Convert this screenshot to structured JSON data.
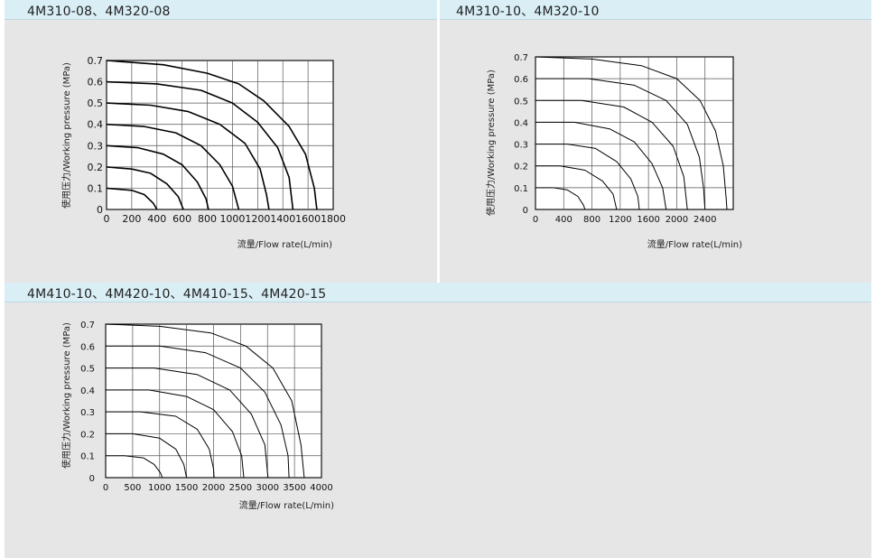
{
  "panels": [
    {
      "title": "4M310-08、4M320-08"
    },
    {
      "title": "4M310-10、4M320-10"
    },
    {
      "title": "4M410-10、4M420-10、4M410-15、4M420-15"
    }
  ],
  "chart_data": [
    {
      "type": "line",
      "title": "4M310-08、4M320-08",
      "xlabel": "流量/Flow rate(L/min)",
      "ylabel": "使用压力/Working pressure (MPa)",
      "xlim": [
        0,
        1800
      ],
      "ylim": [
        0,
        0.7
      ],
      "x_ticks": [
        "0",
        "200",
        "400",
        "600",
        "800",
        "1000",
        "1200",
        "1400",
        "1600",
        "1800"
      ],
      "y_ticks": [
        "0",
        "0.1",
        "0.2",
        "0.3",
        "0.4",
        "0.5",
        "0.6",
        "0.7"
      ],
      "grid": true,
      "series": [
        {
          "values": [
            [
              0,
              0.1
            ],
            [
              200,
              0.09
            ],
            [
              300,
              0.07
            ],
            [
              370,
              0.03
            ],
            [
              400,
              0
            ]
          ]
        },
        {
          "values": [
            [
              0,
              0.2
            ],
            [
              200,
              0.19
            ],
            [
              350,
              0.17
            ],
            [
              480,
              0.12
            ],
            [
              570,
              0.06
            ],
            [
              610,
              0
            ]
          ]
        },
        {
          "values": [
            [
              0,
              0.3
            ],
            [
              250,
              0.29
            ],
            [
              450,
              0.26
            ],
            [
              600,
              0.21
            ],
            [
              720,
              0.13
            ],
            [
              790,
              0.05
            ],
            [
              810,
              0
            ]
          ]
        },
        {
          "values": [
            [
              0,
              0.4
            ],
            [
              300,
              0.39
            ],
            [
              550,
              0.36
            ],
            [
              750,
              0.3
            ],
            [
              900,
              0.21
            ],
            [
              1000,
              0.11
            ],
            [
              1050,
              0
            ]
          ]
        },
        {
          "values": [
            [
              0,
              0.5
            ],
            [
              350,
              0.49
            ],
            [
              650,
              0.46
            ],
            [
              900,
              0.4
            ],
            [
              1100,
              0.31
            ],
            [
              1220,
              0.19
            ],
            [
              1270,
              0.07
            ],
            [
              1290,
              0
            ]
          ]
        },
        {
          "values": [
            [
              0,
              0.6
            ],
            [
              400,
              0.59
            ],
            [
              750,
              0.56
            ],
            [
              1000,
              0.5
            ],
            [
              1200,
              0.41
            ],
            [
              1360,
              0.29
            ],
            [
              1450,
              0.15
            ],
            [
              1480,
              0
            ]
          ]
        },
        {
          "values": [
            [
              0,
              0.7
            ],
            [
              450,
              0.68
            ],
            [
              800,
              0.64
            ],
            [
              1050,
              0.59
            ],
            [
              1250,
              0.51
            ],
            [
              1450,
              0.39
            ],
            [
              1580,
              0.26
            ],
            [
              1650,
              0.1
            ],
            [
              1670,
              0
            ]
          ]
        }
      ]
    },
    {
      "type": "line",
      "title": "4M310-10、4M320-10",
      "xlabel": "流量/Flow rate(L/min)",
      "ylabel": "使用压力/Working pressure (MPa)",
      "xlim": [
        0,
        2800
      ],
      "ylim": [
        0,
        0.7
      ],
      "x_ticks": [
        "0",
        "400",
        "800",
        "1200",
        "1600",
        "2000",
        "2400"
      ],
      "y_ticks": [
        "0",
        "0.1",
        "0.2",
        "0.3",
        "0.4",
        "0.5",
        "0.6",
        "0.7"
      ],
      "grid": true,
      "series": [
        {
          "values": [
            [
              0,
              0.1
            ],
            [
              250,
              0.1
            ],
            [
              450,
              0.09
            ],
            [
              600,
              0.06
            ],
            [
              680,
              0.02
            ],
            [
              700,
              0
            ]
          ]
        },
        {
          "values": [
            [
              0,
              0.2
            ],
            [
              350,
              0.2
            ],
            [
              700,
              0.18
            ],
            [
              950,
              0.13
            ],
            [
              1100,
              0.07
            ],
            [
              1150,
              0
            ]
          ]
        },
        {
          "values": [
            [
              0,
              0.3
            ],
            [
              450,
              0.3
            ],
            [
              850,
              0.28
            ],
            [
              1150,
              0.22
            ],
            [
              1350,
              0.14
            ],
            [
              1450,
              0.06
            ],
            [
              1470,
              0
            ]
          ]
        },
        {
          "values": [
            [
              0,
              0.4
            ],
            [
              550,
              0.4
            ],
            [
              1050,
              0.37
            ],
            [
              1400,
              0.31
            ],
            [
              1650,
              0.21
            ],
            [
              1800,
              0.1
            ],
            [
              1850,
              0
            ]
          ]
        },
        {
          "values": [
            [
              0,
              0.5
            ],
            [
              650,
              0.5
            ],
            [
              1250,
              0.47
            ],
            [
              1650,
              0.4
            ],
            [
              1950,
              0.29
            ],
            [
              2100,
              0.15
            ],
            [
              2150,
              0
            ]
          ]
        },
        {
          "values": [
            [
              0,
              0.6
            ],
            [
              750,
              0.6
            ],
            [
              1400,
              0.57
            ],
            [
              1850,
              0.5
            ],
            [
              2150,
              0.39
            ],
            [
              2320,
              0.24
            ],
            [
              2380,
              0.1
            ],
            [
              2400,
              0
            ]
          ]
        },
        {
          "values": [
            [
              0,
              0.7
            ],
            [
              800,
              0.69
            ],
            [
              1500,
              0.66
            ],
            [
              2000,
              0.6
            ],
            [
              2330,
              0.5
            ],
            [
              2550,
              0.36
            ],
            [
              2660,
              0.2
            ],
            [
              2700,
              0.05
            ],
            [
              2710,
              0
            ]
          ]
        }
      ]
    },
    {
      "type": "line",
      "title": "4M410-10、4M420-10、4M410-15、4M420-15",
      "xlabel": "流量/Flow rate(L/min)",
      "ylabel": "使用压力/Working pressure (MPa)",
      "xlim": [
        0,
        4000
      ],
      "ylim": [
        0,
        0.7
      ],
      "x_ticks": [
        "0",
        "500",
        "1000",
        "1500",
        "2000",
        "2500",
        "3000",
        "3500",
        "4000"
      ],
      "y_ticks": [
        "0",
        "0.1",
        "0.2",
        "0.3",
        "0.4",
        "0.5",
        "0.6",
        "0.7"
      ],
      "grid": true,
      "series": [
        {
          "values": [
            [
              0,
              0.1
            ],
            [
              350,
              0.1
            ],
            [
              700,
              0.09
            ],
            [
              900,
              0.06
            ],
            [
              1020,
              0.02
            ],
            [
              1050,
              0
            ]
          ]
        },
        {
          "values": [
            [
              0,
              0.2
            ],
            [
              500,
              0.2
            ],
            [
              1000,
              0.18
            ],
            [
              1300,
              0.13
            ],
            [
              1450,
              0.06
            ],
            [
              1500,
              0
            ]
          ]
        },
        {
          "values": [
            [
              0,
              0.3
            ],
            [
              650,
              0.3
            ],
            [
              1300,
              0.28
            ],
            [
              1700,
              0.22
            ],
            [
              1920,
              0.13
            ],
            [
              2000,
              0.04
            ],
            [
              2010,
              0
            ]
          ]
        },
        {
          "values": [
            [
              0,
              0.4
            ],
            [
              800,
              0.4
            ],
            [
              1500,
              0.37
            ],
            [
              2000,
              0.31
            ],
            [
              2350,
              0.21
            ],
            [
              2520,
              0.1
            ],
            [
              2560,
              0
            ]
          ]
        },
        {
          "values": [
            [
              0,
              0.5
            ],
            [
              900,
              0.5
            ],
            [
              1700,
              0.47
            ],
            [
              2300,
              0.4
            ],
            [
              2700,
              0.29
            ],
            [
              2950,
              0.15
            ],
            [
              3010,
              0
            ]
          ]
        },
        {
          "values": [
            [
              0,
              0.6
            ],
            [
              1000,
              0.6
            ],
            [
              1850,
              0.57
            ],
            [
              2500,
              0.5
            ],
            [
              2950,
              0.39
            ],
            [
              3250,
              0.24
            ],
            [
              3380,
              0.1
            ],
            [
              3400,
              0
            ]
          ]
        },
        {
          "values": [
            [
              0,
              0.7
            ],
            [
              1000,
              0.69
            ],
            [
              1950,
              0.66
            ],
            [
              2600,
              0.6
            ],
            [
              3100,
              0.5
            ],
            [
              3450,
              0.35
            ],
            [
              3620,
              0.15
            ],
            [
              3680,
              0
            ]
          ]
        }
      ]
    }
  ]
}
